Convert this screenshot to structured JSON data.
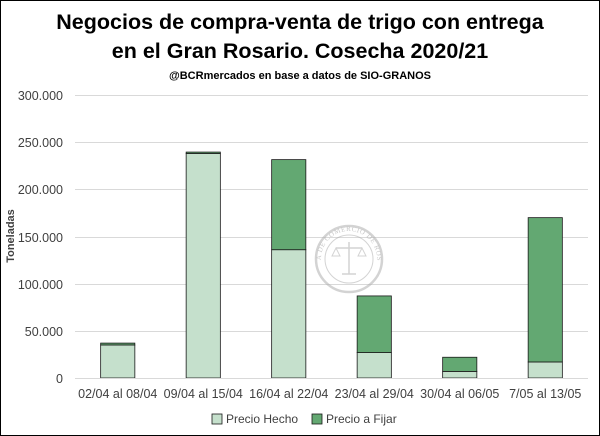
{
  "colors": {
    "precio_hecho": "#c5e0cc",
    "precio_a_fijar": "#63a872",
    "bar_stroke": "#1a1a1a",
    "grid": "#d9d9d9",
    "seal": "#b0b0b0"
  },
  "chart_data": {
    "type": "bar",
    "stacked": true,
    "title_line1": "Negocios de compra-venta de trigo con entrega",
    "title_line2": "en el Gran Rosario. Cosecha 2020/21",
    "subtitle": "@BCRmercados en base a datos de SIO-GRANOS",
    "xlabel": "",
    "ylabel": "Toneladas",
    "ylim": [
      0,
      300000
    ],
    "yticks": [
      0,
      50000,
      100000,
      150000,
      200000,
      250000,
      300000
    ],
    "ytick_labels": [
      "0",
      "50.000",
      "100.000",
      "150.000",
      "200.000",
      "250.000",
      "300.000"
    ],
    "grid": true,
    "legend_position": "bottom",
    "categories": [
      "02/04 al 08/04",
      "09/04 al 15/04",
      "16/04 al 22/04",
      "23/04 al 29/04",
      "30/04 al 06/05",
      "7/05 al 13/05"
    ],
    "series": [
      {
        "name": "Precio Hecho",
        "values": [
          35000,
          238000,
          136000,
          27000,
          7000,
          17000
        ]
      },
      {
        "name": "Precio a Fijar",
        "values": [
          2000,
          1500,
          95500,
          60000,
          15000,
          153000
        ]
      }
    ]
  },
  "watermark": {
    "text": "BOLSA DE COMERCIO DE ROSARIO"
  }
}
